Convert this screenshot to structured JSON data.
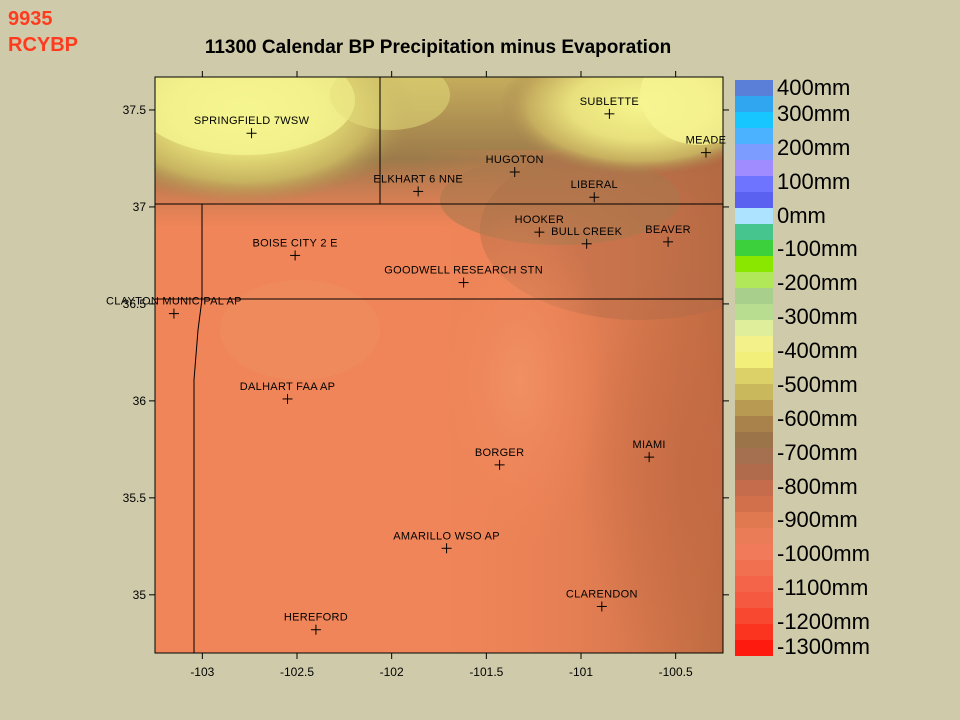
{
  "corner_label": {
    "line1": "9935",
    "line2": "RCYBP"
  },
  "title": "11300 Calendar BP Precipitation minus Evaporation",
  "axes": {
    "x_ticks": [
      {
        "value": -103,
        "label": "-103"
      },
      {
        "value": -102.5,
        "label": "-102.5"
      },
      {
        "value": -102,
        "label": "-102"
      },
      {
        "value": -101.5,
        "label": "-101.5"
      },
      {
        "value": -101,
        "label": "-101"
      },
      {
        "value": -100.5,
        "label": "-100.5"
      }
    ],
    "y_ticks": [
      {
        "value": 37.5,
        "label": "37.5"
      },
      {
        "value": 37,
        "label": "37"
      },
      {
        "value": 36.5,
        "label": "36.5"
      },
      {
        "value": 36,
        "label": "36"
      },
      {
        "value": 35.5,
        "label": "35.5"
      },
      {
        "value": 35,
        "label": "35"
      }
    ],
    "xlim": [
      -103.25,
      -100.25
    ],
    "ylim": [
      34.7,
      37.67
    ]
  },
  "stations": [
    {
      "name": "SPRINGFIELD 7WSW",
      "lon": -102.74,
      "lat": 37.38
    },
    {
      "name": "SUBLETTE",
      "lon": -100.85,
      "lat": 37.48
    },
    {
      "name": "MEADE",
      "lon": -100.34,
      "lat": 37.28
    },
    {
      "name": "HUGOTON",
      "lon": -101.35,
      "lat": 37.18
    },
    {
      "name": "ELKHART 6 NNE",
      "lon": -101.86,
      "lat": 37.08
    },
    {
      "name": "LIBERAL",
      "lon": -100.93,
      "lat": 37.05
    },
    {
      "name": "HOOKER",
      "lon": -101.22,
      "lat": 36.87
    },
    {
      "name": "BULL CREEK",
      "lon": -100.97,
      "lat": 36.81
    },
    {
      "name": "BEAVER",
      "lon": -100.54,
      "lat": 36.82
    },
    {
      "name": "BOISE CITY 2 E",
      "lon": -102.51,
      "lat": 36.75
    },
    {
      "name": "GOODWELL RESEARCH STN",
      "lon": -101.62,
      "lat": 36.61
    },
    {
      "name": "CLAYTON MUNICIPAL AP",
      "lon": -103.15,
      "lat": 36.45
    },
    {
      "name": "DALHART FAA AP",
      "lon": -102.55,
      "lat": 36.01
    },
    {
      "name": "BORGER",
      "lon": -101.43,
      "lat": 35.67
    },
    {
      "name": "MIAMI",
      "lon": -100.64,
      "lat": 35.71
    },
    {
      "name": "AMARILLO WSO AP",
      "lon": -101.71,
      "lat": 35.24
    },
    {
      "name": "CLARENDON",
      "lon": -100.89,
      "lat": 34.94
    },
    {
      "name": "HEREFORD",
      "lon": -102.4,
      "lat": 34.82
    }
  ],
  "legend": {
    "labels": [
      "400mm",
      "300mm",
      "200mm",
      "100mm",
      "0mm",
      "-100mm",
      "-200mm",
      "-300mm",
      "-400mm",
      "-500mm",
      "-600mm",
      "-700mm",
      "-800mm",
      "-900mm",
      "-1000mm",
      "-1100mm",
      "-1200mm",
      "-1300mm"
    ],
    "range_mm": [
      400,
      -1300
    ],
    "colors": [
      "#5a7fd8",
      "#31a6f0",
      "#18c6ff",
      "#4ab2ff",
      "#7c9cff",
      "#a08cff",
      "#6e74ff",
      "#5a60f0",
      "#aee3ff",
      "#46c58e",
      "#3cd03c",
      "#8ae800",
      "#b0e85a",
      "#a8d08c",
      "#b8dc90",
      "#dfee9a",
      "#f3f28a",
      "#f2f07a",
      "#dcd068",
      "#c9b85c",
      "#b89a52",
      "#a8824a",
      "#9c744a",
      "#a47050",
      "#b06a4c",
      "#c46c4c",
      "#d2704c",
      "#e07850",
      "#ea7c58",
      "#f07a5a",
      "#f07050",
      "#f46448",
      "#f55a40",
      "#f84830",
      "#fb3420",
      "#ff1a10"
    ]
  },
  "colors": {
    "background": "#cfcbaa",
    "corner_label": "#ff3b1f",
    "base_fill": "#ef8558"
  }
}
